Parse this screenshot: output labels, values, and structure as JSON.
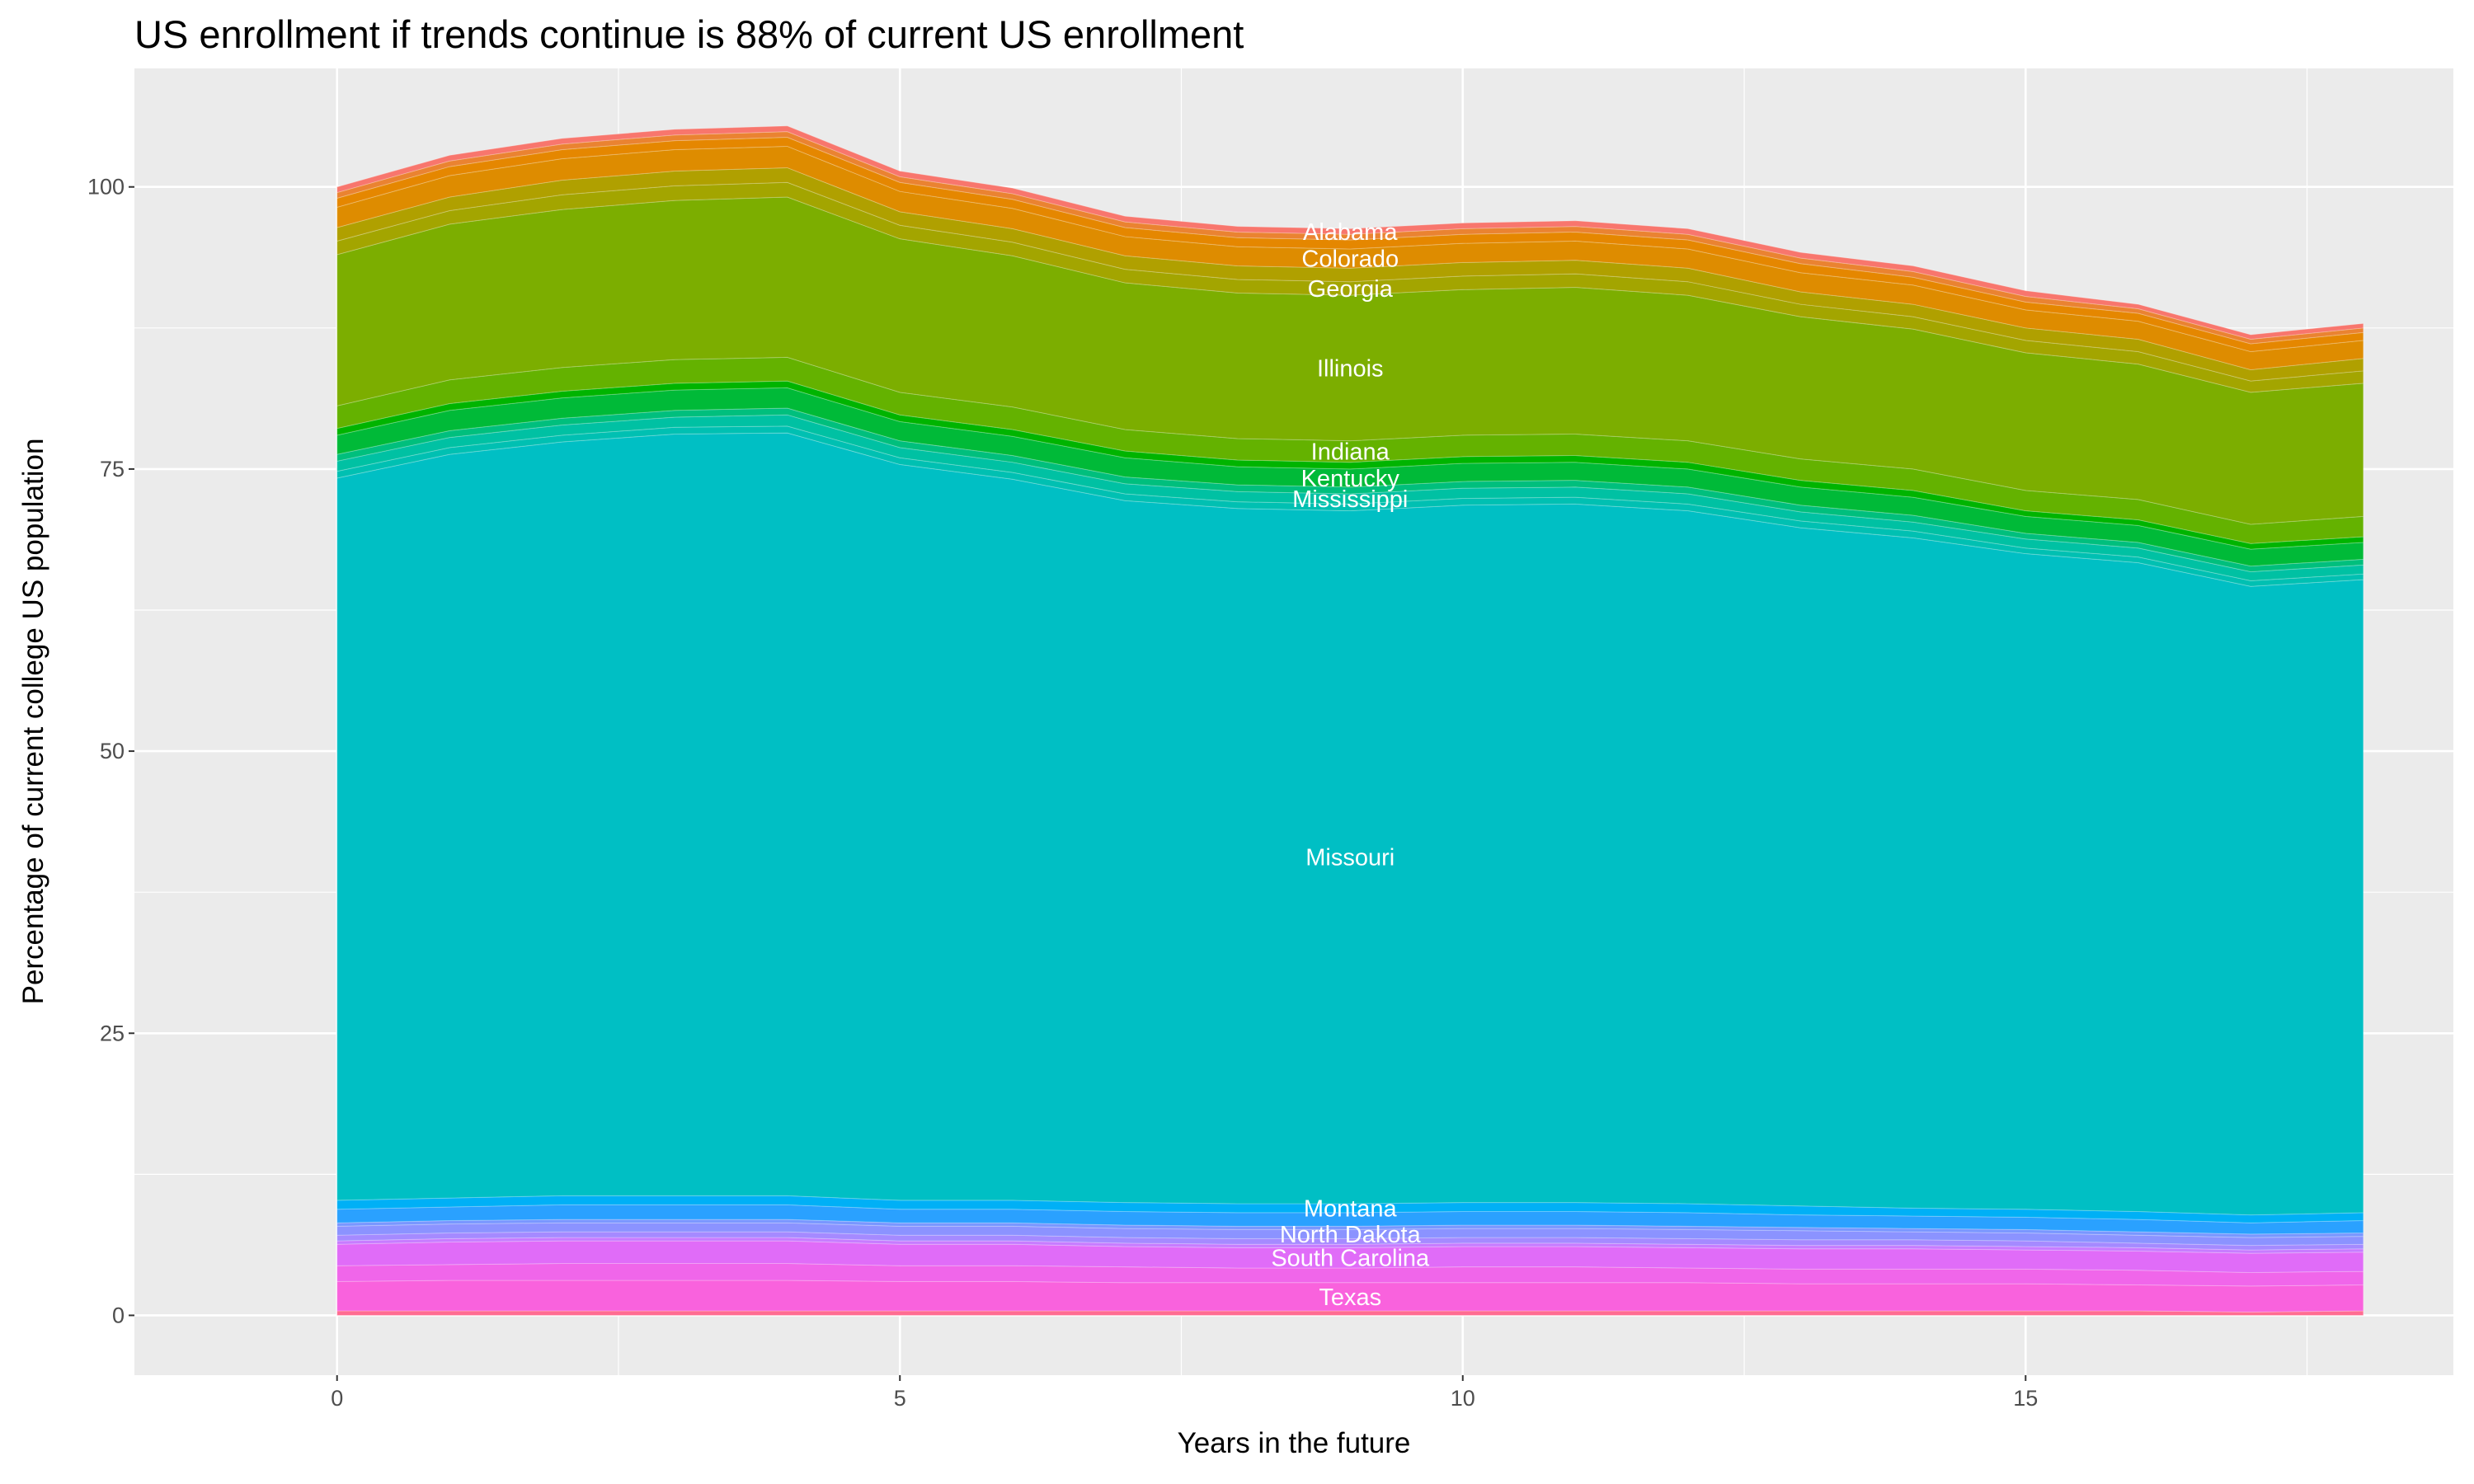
{
  "chart_data": {
    "type": "area",
    "stacked": true,
    "title": "US enrollment if trends continue is 88% of current US enrollment",
    "xlabel": "Years in the future",
    "ylabel": "Percentage of current college US population",
    "x": [
      0,
      1,
      2,
      3,
      4,
      5,
      6,
      7,
      8,
      9,
      10,
      11,
      12,
      13,
      14,
      15,
      16,
      17,
      18
    ],
    "xlim": [
      -1.8,
      18.8
    ],
    "ylim": [
      -5.3,
      110.5
    ],
    "xticks": [
      0,
      5,
      10,
      15
    ],
    "xtick_labels": [
      "0",
      "5",
      "10",
      "15"
    ],
    "yticks": [
      0,
      25,
      50,
      75,
      100
    ],
    "ytick_labels": [
      "0",
      "25",
      "50",
      "75",
      "100"
    ],
    "grid": true,
    "legend": "none",
    "background": "#EBEBEB",
    "label_x": 9,
    "series": [
      {
        "color": "#FF6C91",
        "values": [
          0.4,
          0.4,
          0.4,
          0.4,
          0.4,
          0.4,
          0.4,
          0.4,
          0.4,
          0.4,
          0.4,
          0.4,
          0.4,
          0.4,
          0.4,
          0.4,
          0.4,
          0.3,
          0.4
        ]
      },
      {
        "name": "Texas",
        "color": "#F962DD",
        "values": [
          2.6,
          2.7,
          2.7,
          2.7,
          2.7,
          2.6,
          2.6,
          2.5,
          2.5,
          2.5,
          2.5,
          2.5,
          2.5,
          2.4,
          2.4,
          2.4,
          2.3,
          2.3,
          2.3
        ]
      },
      {
        "color": "#F066EA",
        "values": [
          1.4,
          1.4,
          1.5,
          1.5,
          1.5,
          1.4,
          1.4,
          1.4,
          1.3,
          1.3,
          1.4,
          1.4,
          1.3,
          1.3,
          1.3,
          1.3,
          1.3,
          1.2,
          1.2
        ]
      },
      {
        "name": "South Carolina",
        "color": "#E06CF8",
        "values": [
          1.9,
          2.0,
          2.0,
          2.0,
          2.0,
          1.9,
          1.9,
          1.8,
          1.8,
          1.8,
          1.8,
          1.8,
          1.8,
          1.8,
          1.8,
          1.7,
          1.7,
          1.7,
          1.7
        ]
      },
      {
        "color": "#C77CFF",
        "values": [
          0.3,
          0.3,
          0.3,
          0.3,
          0.3,
          0.3,
          0.3,
          0.3,
          0.3,
          0.3,
          0.3,
          0.3,
          0.3,
          0.3,
          0.3,
          0.3,
          0.3,
          0.3,
          0.3
        ]
      },
      {
        "color": "#A58AFF",
        "values": [
          0.5,
          0.5,
          0.5,
          0.5,
          0.5,
          0.5,
          0.5,
          0.5,
          0.5,
          0.5,
          0.5,
          0.5,
          0.5,
          0.5,
          0.5,
          0.5,
          0.4,
          0.4,
          0.4
        ]
      },
      {
        "name": "North Dakota",
        "color": "#8B93FF",
        "values": [
          0.8,
          0.8,
          0.8,
          0.8,
          0.8,
          0.8,
          0.8,
          0.8,
          0.8,
          0.8,
          0.8,
          0.8,
          0.8,
          0.8,
          0.7,
          0.7,
          0.7,
          0.7,
          0.7
        ]
      },
      {
        "color": "#7997FF",
        "values": [
          0.3,
          0.3,
          0.3,
          0.3,
          0.3,
          0.3,
          0.3,
          0.3,
          0.3,
          0.3,
          0.3,
          0.3,
          0.3,
          0.3,
          0.3,
          0.3,
          0.3,
          0.3,
          0.3
        ]
      },
      {
        "color": "#2AA1FF",
        "values": [
          1.2,
          1.2,
          1.3,
          1.3,
          1.3,
          1.2,
          1.2,
          1.2,
          1.2,
          1.2,
          1.2,
          1.2,
          1.2,
          1.1,
          1.1,
          1.1,
          1.1,
          1.0,
          1.1
        ]
      },
      {
        "name": "Montana",
        "color": "#00B0F6",
        "values": [
          0.8,
          0.8,
          0.8,
          0.8,
          0.8,
          0.8,
          0.8,
          0.8,
          0.8,
          0.8,
          0.8,
          0.8,
          0.8,
          0.8,
          0.7,
          0.7,
          0.7,
          0.7,
          0.7
        ]
      },
      {
        "name": "Missouri",
        "color": "#00BFC4",
        "values": [
          64.0,
          65.9,
          66.8,
          67.5,
          67.6,
          65.2,
          63.9,
          62.2,
          61.6,
          61.4,
          61.8,
          61.9,
          61.4,
          60.1,
          59.4,
          58.1,
          57.5,
          55.7,
          56.1
        ]
      },
      {
        "color": "#00C0B2",
        "values": [
          0.6,
          0.6,
          0.6,
          0.6,
          0.6,
          0.6,
          0.6,
          0.6,
          0.6,
          0.6,
          0.6,
          0.6,
          0.6,
          0.6,
          0.6,
          0.5,
          0.5,
          0.5,
          0.5
        ]
      },
      {
        "name": "Mississippi",
        "color": "#00C1A3",
        "values": [
          0.9,
          0.9,
          0.9,
          0.9,
          1.0,
          0.9,
          0.9,
          0.9,
          0.9,
          0.9,
          0.9,
          0.9,
          0.9,
          0.8,
          0.8,
          0.8,
          0.8,
          0.8,
          0.8
        ]
      },
      {
        "color": "#00BF7D",
        "values": [
          0.6,
          0.6,
          0.6,
          0.6,
          0.6,
          0.6,
          0.6,
          0.6,
          0.6,
          0.6,
          0.6,
          0.6,
          0.6,
          0.6,
          0.6,
          0.5,
          0.5,
          0.5,
          0.5
        ]
      },
      {
        "name": "Kentucky",
        "color": "#00BA38",
        "values": [
          1.7,
          1.8,
          1.8,
          1.8,
          1.8,
          1.7,
          1.7,
          1.7,
          1.6,
          1.6,
          1.6,
          1.6,
          1.6,
          1.6,
          1.6,
          1.5,
          1.5,
          1.5,
          1.5
        ]
      },
      {
        "color": "#00B400",
        "values": [
          0.6,
          0.6,
          0.6,
          0.6,
          0.6,
          0.6,
          0.6,
          0.6,
          0.6,
          0.6,
          0.6,
          0.6,
          0.6,
          0.6,
          0.6,
          0.5,
          0.5,
          0.5,
          0.5
        ]
      },
      {
        "name": "Indiana",
        "color": "#64B200",
        "values": [
          2.0,
          2.1,
          2.1,
          2.1,
          2.1,
          2.0,
          2.0,
          1.9,
          1.9,
          1.9,
          1.9,
          1.9,
          1.9,
          1.9,
          1.9,
          1.8,
          1.8,
          1.7,
          1.8
        ]
      },
      {
        "name": "Illinois",
        "color": "#7CAE00",
        "values": [
          13.4,
          13.8,
          14.0,
          14.1,
          14.2,
          13.6,
          13.4,
          13.0,
          12.9,
          12.9,
          12.9,
          13.0,
          12.9,
          12.6,
          12.4,
          12.2,
          12.0,
          11.7,
          11.8
        ]
      },
      {
        "name": "Georgia",
        "color": "#A3A500",
        "values": [
          1.2,
          1.2,
          1.3,
          1.3,
          1.3,
          1.2,
          1.2,
          1.2,
          1.2,
          1.2,
          1.2,
          1.2,
          1.2,
          1.1,
          1.1,
          1.1,
          1.1,
          1.0,
          1.1
        ]
      },
      {
        "color": "#B0A000",
        "values": [
          1.2,
          1.2,
          1.3,
          1.3,
          1.3,
          1.2,
          1.2,
          1.2,
          1.2,
          1.2,
          1.2,
          1.2,
          1.2,
          1.1,
          1.1,
          1.1,
          1.1,
          1.0,
          1.1
        ]
      },
      {
        "name": "Colorado",
        "color": "#DE8C00",
        "values": [
          1.8,
          1.9,
          1.9,
          1.9,
          1.9,
          1.8,
          1.8,
          1.7,
          1.7,
          1.7,
          1.7,
          1.7,
          1.7,
          1.7,
          1.7,
          1.6,
          1.6,
          1.6,
          1.6
        ]
      },
      {
        "color": "#E58700",
        "values": [
          0.8,
          0.8,
          0.8,
          0.8,
          0.8,
          0.8,
          0.8,
          0.8,
          0.8,
          0.8,
          0.8,
          0.8,
          0.8,
          0.8,
          0.7,
          0.7,
          0.7,
          0.7,
          0.7
        ]
      },
      {
        "color": "#EA8331",
        "values": [
          0.5,
          0.5,
          0.5,
          0.5,
          0.5,
          0.5,
          0.5,
          0.5,
          0.5,
          0.5,
          0.5,
          0.5,
          0.5,
          0.5,
          0.5,
          0.5,
          0.4,
          0.4,
          0.4
        ]
      },
      {
        "name": "Alabama",
        "color": "#F8766D",
        "values": [
          0.5,
          0.5,
          0.5,
          0.5,
          0.5,
          0.5,
          0.5,
          0.5,
          0.5,
          0.5,
          0.5,
          0.5,
          0.5,
          0.5,
          0.5,
          0.5,
          0.4,
          0.4,
          0.4
        ]
      }
    ]
  }
}
